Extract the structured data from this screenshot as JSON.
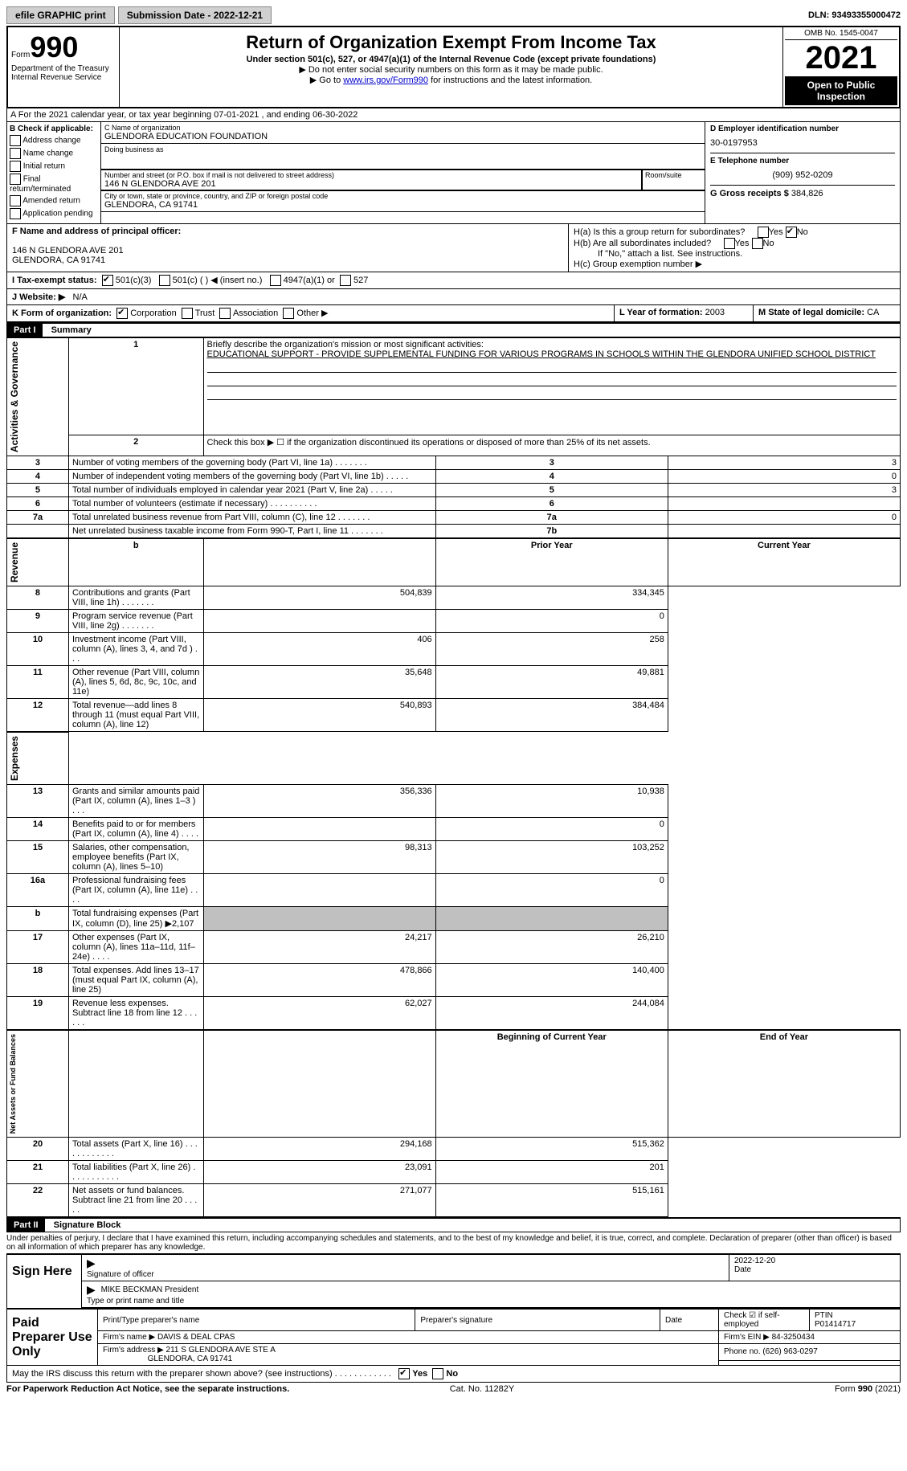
{
  "topbar": {
    "efile": "efile GRAPHIC print",
    "sub_label": "Submission Date - 2022-12-21",
    "dln": "DLN: 93493355000472"
  },
  "header": {
    "form_label": "Form",
    "form_num": "990",
    "dept": "Department of the Treasury Internal Revenue Service",
    "title": "Return of Organization Exempt From Income Tax",
    "subtitle": "Under section 501(c), 527, or 4947(a)(1) of the Internal Revenue Code (except private foundations)",
    "note1": "▶ Do not enter social security numbers on this form as it may be made public.",
    "note2_pre": "▶ Go to ",
    "note2_link": "www.irs.gov/Form990",
    "note2_post": " for instructions and the latest information.",
    "omb": "OMB No. 1545-0047",
    "year": "2021",
    "open": "Open to Public Inspection"
  },
  "a": {
    "text": "A For the 2021 calendar year, or tax year beginning 07-01-2021    , and ending 06-30-2022"
  },
  "b": {
    "label": "B Check if applicable:",
    "opts": [
      "Address change",
      "Name change",
      "Initial return",
      "Final return/terminated",
      "Amended return",
      "Application pending"
    ]
  },
  "c": {
    "name_lbl": "C Name of organization",
    "name": "GLENDORA EDUCATION FOUNDATION",
    "dba_lbl": "Doing business as",
    "dba": "",
    "street_lbl": "Number and street (or P.O. box if mail is not delivered to street address)",
    "room_lbl": "Room/suite",
    "street": "146 N GLENDORA AVE 201",
    "city_lbl": "City or town, state or province, country, and ZIP or foreign postal code",
    "city": "GLENDORA, CA  91741"
  },
  "d_e_g": {
    "d_lbl": "D Employer identification number",
    "d_val": "30-0197953",
    "e_lbl": "E Telephone number",
    "e_val": "(909) 952-0209",
    "g_lbl": "G Gross receipts $",
    "g_val": "384,826"
  },
  "f": {
    "lbl": "F Name and address of principal officer:",
    "addr1": "146 N GLENDORA AVE 201",
    "addr2": "GLENDORA, CA  91741"
  },
  "h": {
    "a": "H(a)  Is this a group return for subordinates?",
    "b": "H(b)  Are all subordinates included?",
    "b_note": "If \"No,\" attach a list. See instructions.",
    "c": "H(c)  Group exemption number ▶"
  },
  "tax_status": {
    "label": "I  Tax-exempt status:",
    "opt1": "501(c)(3)",
    "opt2": "501(c) (   ) ◀ (insert no.)",
    "opt3": "4947(a)(1) or",
    "opt4": "527"
  },
  "j": {
    "label": "J  Website: ▶",
    "val": "N/A"
  },
  "k": {
    "label": "K Form of organization:",
    "opts": [
      "Corporation",
      "Trust",
      "Association",
      "Other ▶"
    ]
  },
  "l": {
    "label": "L Year of formation:",
    "val": "2003"
  },
  "m": {
    "label": "M State of legal domicile:",
    "val": "CA"
  },
  "part1": {
    "hdr": "Part I",
    "title": "Summary",
    "line1_lbl": "Briefly describe the organization's mission or most significant activities:",
    "line1_val": "EDUCATIONAL SUPPORT - PROVIDE SUPPLEMENTAL FUNDING FOR VARIOUS PROGRAMS IN SCHOOLS WITHIN THE GLENDORA UNIFIED SCHOOL DISTRICT",
    "line2": "Check this box ▶ ☐  if the organization discontinued its operations or disposed of more than 25% of its net assets.",
    "sidebar1": "Activities & Governance",
    "sidebar2": "Revenue",
    "sidebar3": "Expenses",
    "sidebar4": "Net Assets or Fund Balances",
    "col_prior": "Prior Year",
    "col_current": "Current Year",
    "col_begin": "Beginning of Current Year",
    "col_end": "End of Year"
  },
  "lines_gov": [
    {
      "n": "3",
      "t": "Number of voting members of the governing body (Part VI, line 1a)    .    .    .    .    .    .    .",
      "box": "3",
      "v": "3"
    },
    {
      "n": "4",
      "t": "Number of independent voting members of the governing body (Part VI, line 1b)    .    .    .    .    .",
      "box": "4",
      "v": "0"
    },
    {
      "n": "5",
      "t": "Total number of individuals employed in calendar year 2021 (Part V, line 2a)    .    .    .    .    .",
      "box": "5",
      "v": "3"
    },
    {
      "n": "6",
      "t": "Total number of volunteers (estimate if necessary)    .    .    .    .    .    .    .    .    .    .",
      "box": "6",
      "v": ""
    },
    {
      "n": "7a",
      "t": "Total unrelated business revenue from Part VIII, column (C), line 12    .    .    .    .    .    .    .",
      "box": "7a",
      "v": "0"
    },
    {
      "n": "",
      "t": "Net unrelated business taxable income from Form 990-T, Part I, line 11    .    .    .    .    .    .    .",
      "box": "7b",
      "v": ""
    }
  ],
  "lines_rev": [
    {
      "n": "8",
      "t": "Contributions and grants (Part VIII, line 1h)    .    .    .    .    .    .    .",
      "p": "504,839",
      "c": "334,345"
    },
    {
      "n": "9",
      "t": "Program service revenue (Part VIII, line 2g)    .    .    .    .    .    .    .",
      "p": "",
      "c": "0"
    },
    {
      "n": "10",
      "t": "Investment income (Part VIII, column (A), lines 3, 4, and 7d )    .    .    .",
      "p": "406",
      "c": "258"
    },
    {
      "n": "11",
      "t": "Other revenue (Part VIII, column (A), lines 5, 6d, 8c, 9c, 10c, and 11e)",
      "p": "35,648",
      "c": "49,881"
    },
    {
      "n": "12",
      "t": "Total revenue—add lines 8 through 11 (must equal Part VIII, column (A), line 12)",
      "p": "540,893",
      "c": "384,484"
    }
  ],
  "lines_exp": [
    {
      "n": "13",
      "t": "Grants and similar amounts paid (Part IX, column (A), lines 1–3 )    .    .    .",
      "p": "356,336",
      "c": "10,938"
    },
    {
      "n": "14",
      "t": "Benefits paid to or for members (Part IX, column (A), line 4)    .    .    .    .",
      "p": "",
      "c": "0"
    },
    {
      "n": "15",
      "t": "Salaries, other compensation, employee benefits (Part IX, column (A), lines 5–10)",
      "p": "98,313",
      "c": "103,252"
    },
    {
      "n": "16a",
      "t": "Professional fundraising fees (Part IX, column (A), line 11e)    .    .    .    .",
      "p": "",
      "c": "0"
    },
    {
      "n": "b",
      "t": "Total fundraising expenses (Part IX, column (D), line 25) ▶2,107",
      "p": "shaded",
      "c": "shaded"
    },
    {
      "n": "17",
      "t": "Other expenses (Part IX, column (A), lines 11a–11d, 11f–24e)    .    .    .    .",
      "p": "24,217",
      "c": "26,210"
    },
    {
      "n": "18",
      "t": "Total expenses. Add lines 13–17 (must equal Part IX, column (A), line 25)",
      "p": "478,866",
      "c": "140,400"
    },
    {
      "n": "19",
      "t": "Revenue less expenses. Subtract line 18 from line 12    .    .    .    .    .    .",
      "p": "62,027",
      "c": "244,084"
    }
  ],
  "lines_net": [
    {
      "n": "20",
      "t": "Total assets (Part X, line 16)    .    .    .    .    .    .    .    .    .    .    .    .",
      "p": "294,168",
      "c": "515,362"
    },
    {
      "n": "21",
      "t": "Total liabilities (Part X, line 26)    .    .    .    .    .    .    .    .    .    .    .",
      "p": "23,091",
      "c": "201"
    },
    {
      "n": "22",
      "t": "Net assets or fund balances. Subtract line 21 from line 20    .    .    .    .    .",
      "p": "271,077",
      "c": "515,161"
    }
  ],
  "part2": {
    "hdr": "Part II",
    "title": "Signature Block",
    "decl": "Under penalties of perjury, I declare that I have examined this return, including accompanying schedules and statements, and to the best of my knowledge and belief, it is true, correct, and complete. Declaration of preparer (other than officer) is based on all information of which preparer has any knowledge."
  },
  "sign": {
    "here": "Sign Here",
    "sig_lbl": "Signature of officer",
    "date_lbl": "Date",
    "date_val": "2022-12-20",
    "name_val": "MIKE BECKMAN  President",
    "name_lbl": "Type or print name and title"
  },
  "prep": {
    "label": "Paid Preparer Use Only",
    "c1": "Print/Type preparer's name",
    "c2": "Preparer's signature",
    "c3": "Date",
    "c4": "Check ☑ if self-employed",
    "c5_lbl": "PTIN",
    "c5": "P01414717",
    "firm_lbl": "Firm's name    ▶",
    "firm": "DAVIS & DEAL CPAS",
    "ein_lbl": "Firm's EIN ▶",
    "ein": "84-3250434",
    "addr_lbl": "Firm's address ▶",
    "addr": "211 S GLENDORA AVE STE A",
    "addr2": "GLENDORA, CA  91741",
    "phone_lbl": "Phone no.",
    "phone": "(626) 963-0297"
  },
  "discuss": {
    "q": "May the IRS discuss this return with the preparer shown above? (see instructions)    .    .    .    .    .    .    .    .    .    .    .    .",
    "yes": "Yes",
    "no": "No"
  },
  "footer": {
    "left": "For Paperwork Reduction Act Notice, see the separate instructions.",
    "mid": "Cat. No. 11282Y",
    "right": "Form 990 (2021)"
  }
}
